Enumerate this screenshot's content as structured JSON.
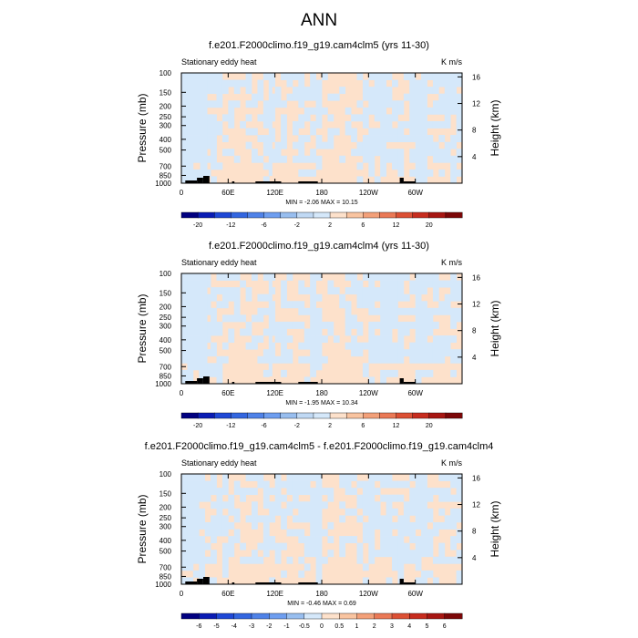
{
  "figure": {
    "title": "ANN"
  },
  "chart_data": [
    {
      "type": "heatmap",
      "title": "f.e201.F2000climo.f19_g19.cam4clm5 (yrs 11-30)",
      "left_label": "Stationary eddy heat",
      "units": "K m/s",
      "ylabel": "Pressure (mb)",
      "ylabel_right": "Height (km)",
      "x_ticks": [
        "0",
        "60E",
        "120E",
        "180",
        "120W",
        "60W"
      ],
      "x_tick_lon": [
        0,
        60,
        120,
        180,
        240,
        300
      ],
      "xlim": [
        0,
        360
      ],
      "y_ticks": [
        "100",
        "150",
        "200",
        "250",
        "300",
        "400",
        "500",
        "700",
        "850",
        "1000"
      ],
      "y_tick_p": [
        100,
        150,
        200,
        250,
        300,
        400,
        500,
        700,
        850,
        1000
      ],
      "ylim": [
        1000,
        100
      ],
      "y_scale": "log",
      "right_ticks": [
        "16",
        "12",
        "8",
        "4"
      ],
      "right_tick_km": [
        16,
        12,
        8,
        4
      ],
      "min_max": "MIN =  -2.06  MAX =  10.15",
      "colorbar_labels": [
        "-20",
        "-12",
        "-6",
        "-2",
        "2",
        "6",
        "12",
        "20"
      ],
      "contour_levels": [
        -20,
        -16,
        -12,
        -8,
        -6,
        -4,
        -2,
        -1,
        1,
        2,
        4,
        6,
        8,
        12,
        16,
        20
      ],
      "dominant_bins": [
        "-2 to 2"
      ],
      "colors": [
        "#010080",
        "#0a1cb4",
        "#1f48d6",
        "#3366e0",
        "#4f82e8",
        "#6e9ef0",
        "#98beef",
        "#c0d9f4",
        "#d5e8fa",
        "#fde1cb",
        "#f9c4a0",
        "#f3a079",
        "#ea7956",
        "#dc5034",
        "#c72c1e",
        "#a71612",
        "#7c0708"
      ]
    },
    {
      "type": "heatmap",
      "title": "f.e201.F2000climo.f19_g19.cam4clm4 (yrs 11-30)",
      "left_label": "Stationary eddy heat",
      "units": "K m/s",
      "ylabel": "Pressure (mb)",
      "ylabel_right": "Height (km)",
      "x_ticks": [
        "0",
        "60E",
        "120E",
        "180",
        "120W",
        "60W"
      ],
      "x_tick_lon": [
        0,
        60,
        120,
        180,
        240,
        300
      ],
      "xlim": [
        0,
        360
      ],
      "y_ticks": [
        "100",
        "150",
        "200",
        "250",
        "300",
        "400",
        "500",
        "700",
        "850",
        "1000"
      ],
      "y_tick_p": [
        100,
        150,
        200,
        250,
        300,
        400,
        500,
        700,
        850,
        1000
      ],
      "ylim": [
        1000,
        100
      ],
      "y_scale": "log",
      "right_ticks": [
        "16",
        "12",
        "8",
        "4"
      ],
      "right_tick_km": [
        16,
        12,
        8,
        4
      ],
      "min_max": "MIN = -1.95  MAX =  10.34",
      "colorbar_labels": [
        "-20",
        "-12",
        "-6",
        "-2",
        "2",
        "6",
        "12",
        "20"
      ],
      "contour_levels": [
        -20,
        -16,
        -12,
        -8,
        -6,
        -4,
        -2,
        -1,
        1,
        2,
        4,
        6,
        8,
        12,
        16,
        20
      ],
      "dominant_bins": [
        "-2 to 2"
      ],
      "colors": [
        "#010080",
        "#0a1cb4",
        "#1f48d6",
        "#3366e0",
        "#4f82e8",
        "#6e9ef0",
        "#98beef",
        "#c0d9f4",
        "#d5e8fa",
        "#fde1cb",
        "#f9c4a0",
        "#f3a079",
        "#ea7956",
        "#dc5034",
        "#c72c1e",
        "#a71612",
        "#7c0708"
      ]
    },
    {
      "type": "heatmap",
      "title": "f.e201.F2000climo.f19_g19.cam4clm5 - f.e201.F2000climo.f19_g19.cam4clm4",
      "left_label": "Stationary eddy heat",
      "units": "K m/s",
      "ylabel": "Pressure (mb)",
      "ylabel_right": "Height (km)",
      "x_ticks": [
        "0",
        "60E",
        "120E",
        "180",
        "120W",
        "60W"
      ],
      "x_tick_lon": [
        0,
        60,
        120,
        180,
        240,
        300
      ],
      "xlim": [
        0,
        360
      ],
      "y_ticks": [
        "100",
        "150",
        "200",
        "250",
        "300",
        "400",
        "500",
        "700",
        "850",
        "1000"
      ],
      "y_tick_p": [
        100,
        150,
        200,
        250,
        300,
        400,
        500,
        700,
        850,
        1000
      ],
      "ylim": [
        1000,
        100
      ],
      "y_scale": "log",
      "right_ticks": [
        "16",
        "12",
        "8",
        "4"
      ],
      "right_tick_km": [
        16,
        12,
        8,
        4
      ],
      "min_max": "MIN = -0.46  MAX =  0.69",
      "colorbar_labels": [
        "-6",
        "-5",
        "-4",
        "-3",
        "-2",
        "-1",
        "-0.5",
        "0",
        "0.5",
        "1",
        "2",
        "3",
        "4",
        "5",
        "6"
      ],
      "contour_levels": [
        -6,
        -5,
        -4,
        -3,
        -2,
        -1,
        -0.5,
        0,
        0.5,
        1,
        2,
        3,
        4,
        5,
        6
      ],
      "dominant_bins": [
        "-0.5 to 0",
        "0 to 0.5"
      ],
      "colors": [
        "#010080",
        "#0a1cb4",
        "#1f48d6",
        "#3366e0",
        "#4f82e8",
        "#6e9ef0",
        "#98beef",
        "#d5e8fa",
        "#fde1cb",
        "#f9c4a0",
        "#f3a079",
        "#ea7956",
        "#dc5034",
        "#c72c1e",
        "#a71612",
        "#7c0708"
      ]
    }
  ]
}
